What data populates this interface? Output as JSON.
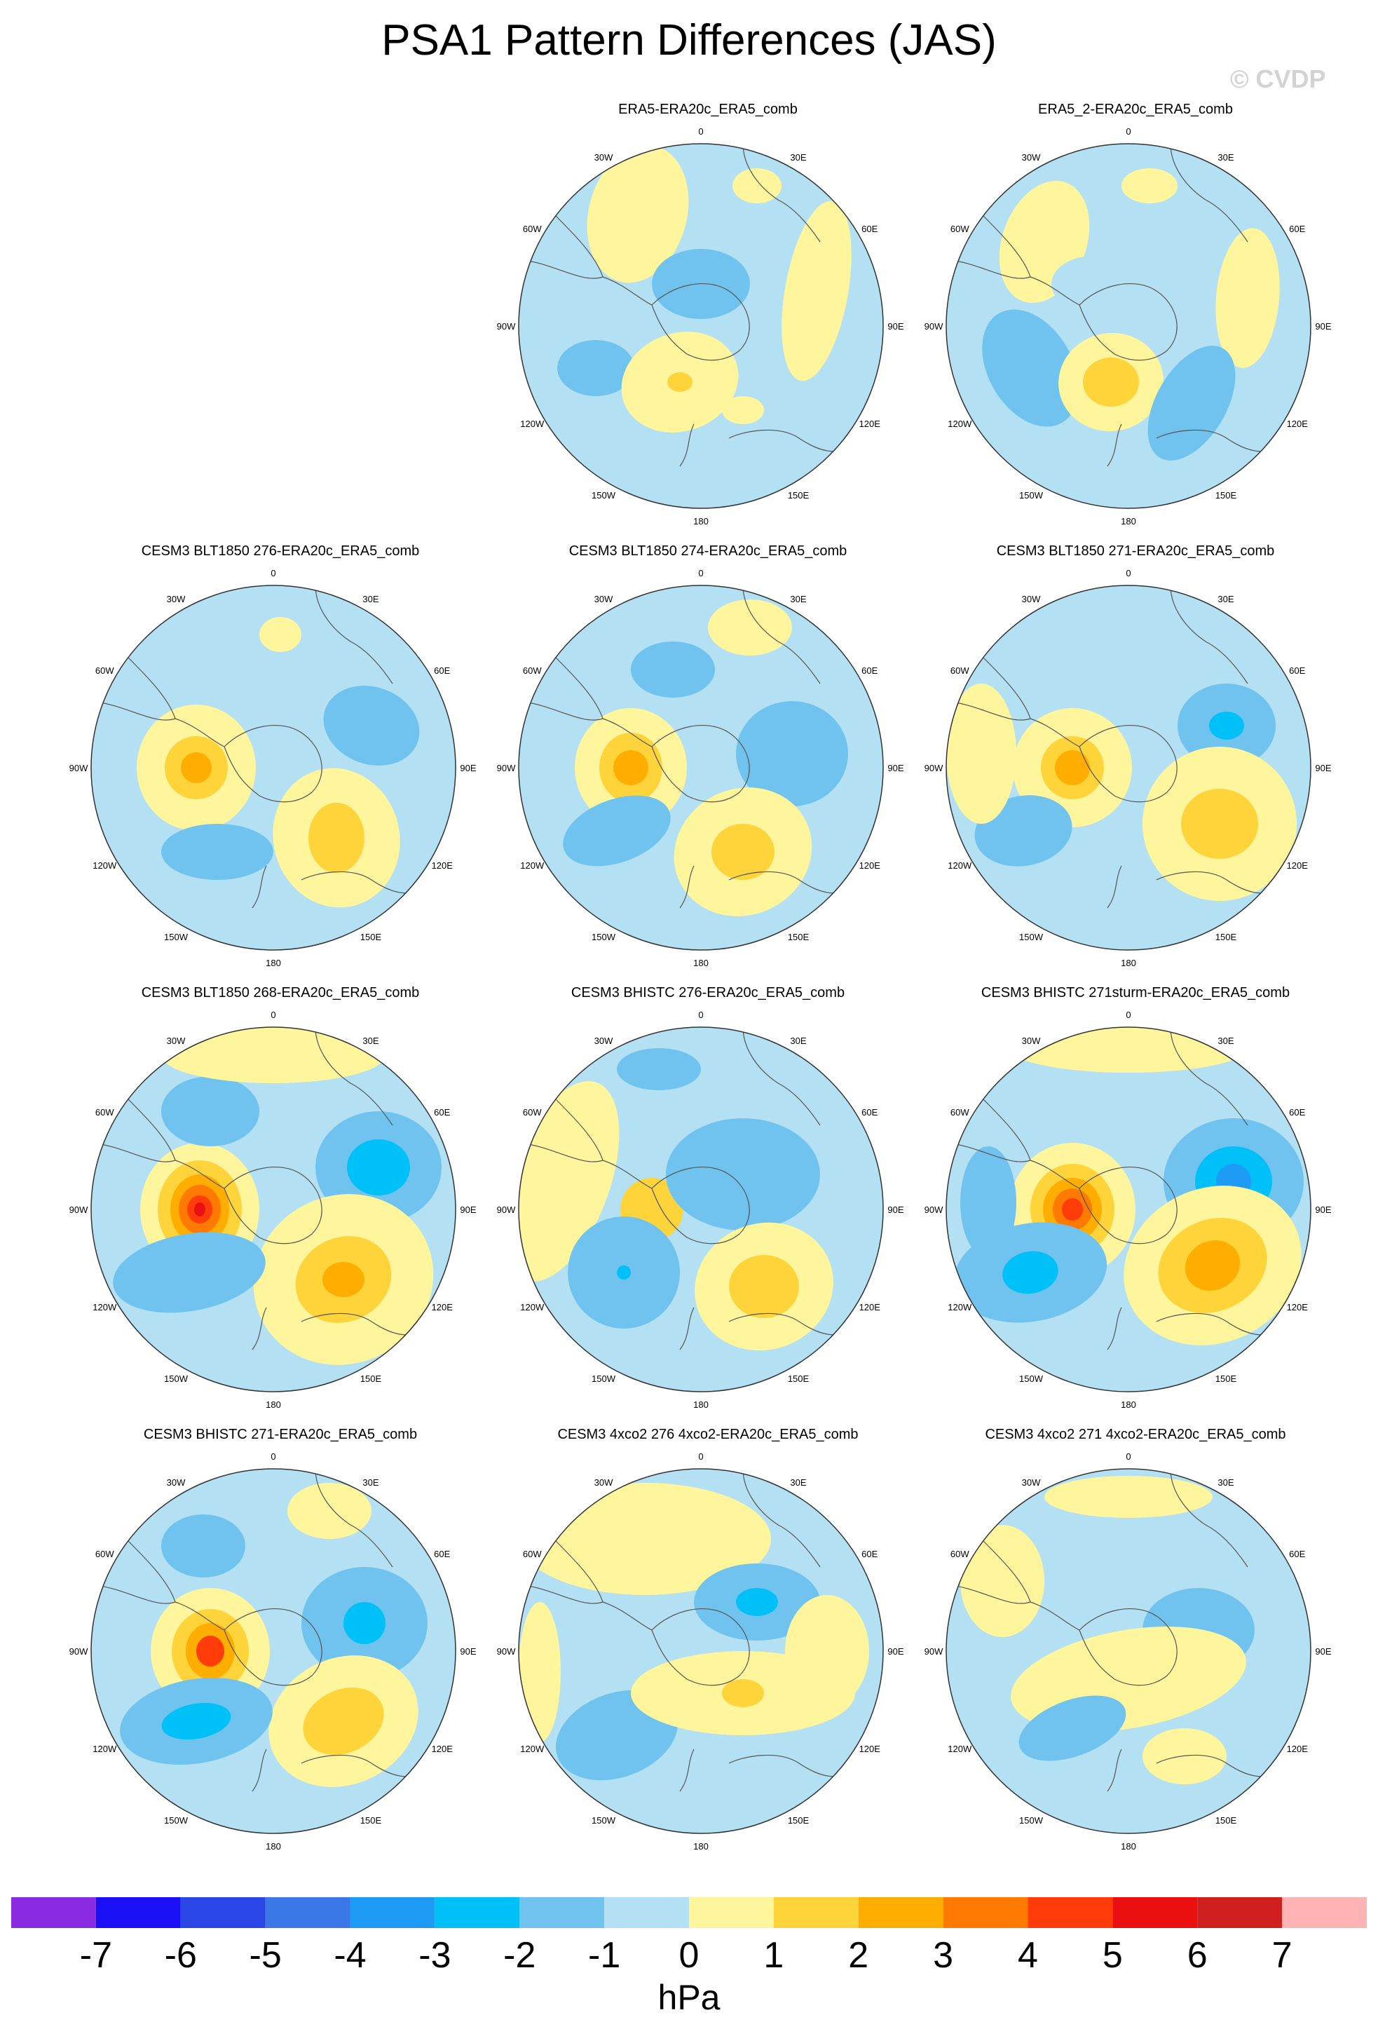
{
  "title": "PSA1 Pattern Differences (JAS)",
  "watermark": "© CVDP",
  "longitude_labels": [
    "0",
    "30E",
    "60E",
    "90E",
    "120E",
    "150E",
    "180",
    "150W",
    "120W",
    "90W",
    "60W",
    "30W"
  ],
  "panels": [
    {
      "title": "ERA5-ERA20c_ERA5_comb",
      "max_positive": 2,
      "min_negative": -2
    },
    {
      "title": "ERA5_2-ERA20c_ERA5_comb",
      "max_positive": 2,
      "min_negative": -2
    },
    {
      "title": "CESM3 BLT1850 276-ERA20c_ERA5_comb",
      "max_positive": 4,
      "min_negative": -2
    },
    {
      "title": "CESM3 BLT1850 274-ERA20c_ERA5_comb",
      "max_positive": 4,
      "min_negative": -2
    },
    {
      "title": "CESM3 BLT1850 271-ERA20c_ERA5_comb",
      "max_positive": 4,
      "min_negative": -3
    },
    {
      "title": "CESM3 BLT1850 268-ERA20c_ERA5_comb",
      "max_positive": 6,
      "min_negative": -3
    },
    {
      "title": "CESM3 BHISTC 276-ERA20c_ERA5_comb",
      "max_positive": 2,
      "min_negative": -3
    },
    {
      "title": "CESM3 BHISTC 271sturm-ERA20c_ERA5_comb",
      "max_positive": 5,
      "min_negative": -4
    },
    {
      "title": "CESM3 BHISTC 271-ERA20c_ERA5_comb",
      "max_positive": 5,
      "min_negative": -3
    },
    {
      "title": "CESM3 4xco2 276 4xco2-ERA20c_ERA5_comb",
      "max_positive": 2,
      "min_negative": -3
    },
    {
      "title": "CESM3 4xco2 271 4xco2-ERA20c_ERA5_comb",
      "max_positive": 1,
      "min_negative": -2
    }
  ],
  "colorbar": {
    "labels": [
      "-7",
      "-6",
      "-5",
      "-4",
      "-3",
      "-2",
      "-1",
      "0",
      "1",
      "2",
      "3",
      "4",
      "5",
      "6",
      "7"
    ],
    "colors": [
      "#8a2be2",
      "#1a10f5",
      "#2c47e8",
      "#3a78e8",
      "#1e9bf5",
      "#00c0f8",
      "#70c3ef",
      "#b4e0f3",
      "#fff59d",
      "#fed43a",
      "#ffae00",
      "#ff7a00",
      "#ff3c0a",
      "#eb1010",
      "#cf1f1f",
      "#ffb3b3"
    ],
    "unit": "hPa"
  },
  "levels": {
    "neg1": "#b4e0f3",
    "neg2": "#70c3ef",
    "neg3": "#00c0f8",
    "neg4": "#1e9bf5",
    "pos1": "#fff59d",
    "pos2": "#fed43a",
    "pos3": "#ffae00",
    "pos4": "#ff7a00",
    "pos5": "#ff3c0a",
    "pos6": "#eb1010"
  }
}
